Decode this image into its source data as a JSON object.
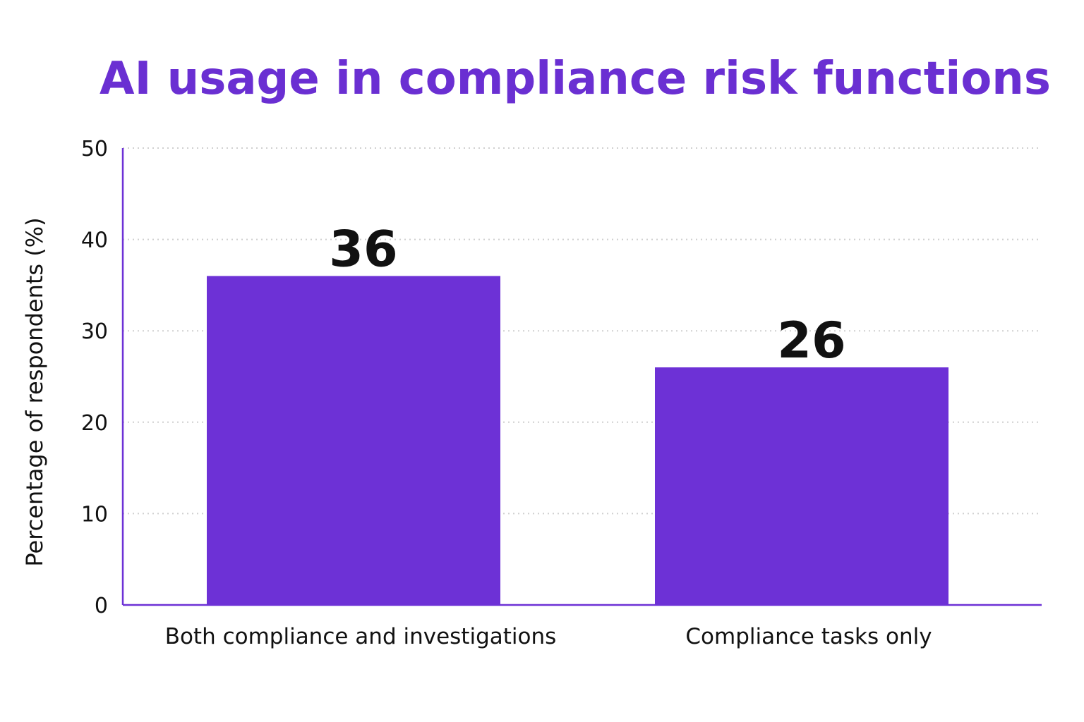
{
  "colors": {
    "accent": "#6d31d6",
    "title": "#6a2fd2",
    "bar": "#6d31d6",
    "axis": "#6d31d6",
    "text": "#111111",
    "grid": "#cfcfcf",
    "background": "#ffffff"
  },
  "chart_data": {
    "type": "bar",
    "title": "AI usage in compliance risk functions",
    "xlabel": "",
    "ylabel": "Percentage of respondents (%)",
    "categories": [
      "Both compliance and investigations",
      "Compliance tasks only"
    ],
    "values": [
      36,
      26
    ],
    "data_labels": [
      "36",
      "26"
    ],
    "ylim": [
      0,
      50
    ],
    "yticks": [
      0,
      10,
      20,
      30,
      40,
      50
    ],
    "ytick_labels": [
      "0",
      "10",
      "20",
      "30",
      "40",
      "50"
    ],
    "grid": true,
    "grid_style": "dotted",
    "legend": "none"
  }
}
